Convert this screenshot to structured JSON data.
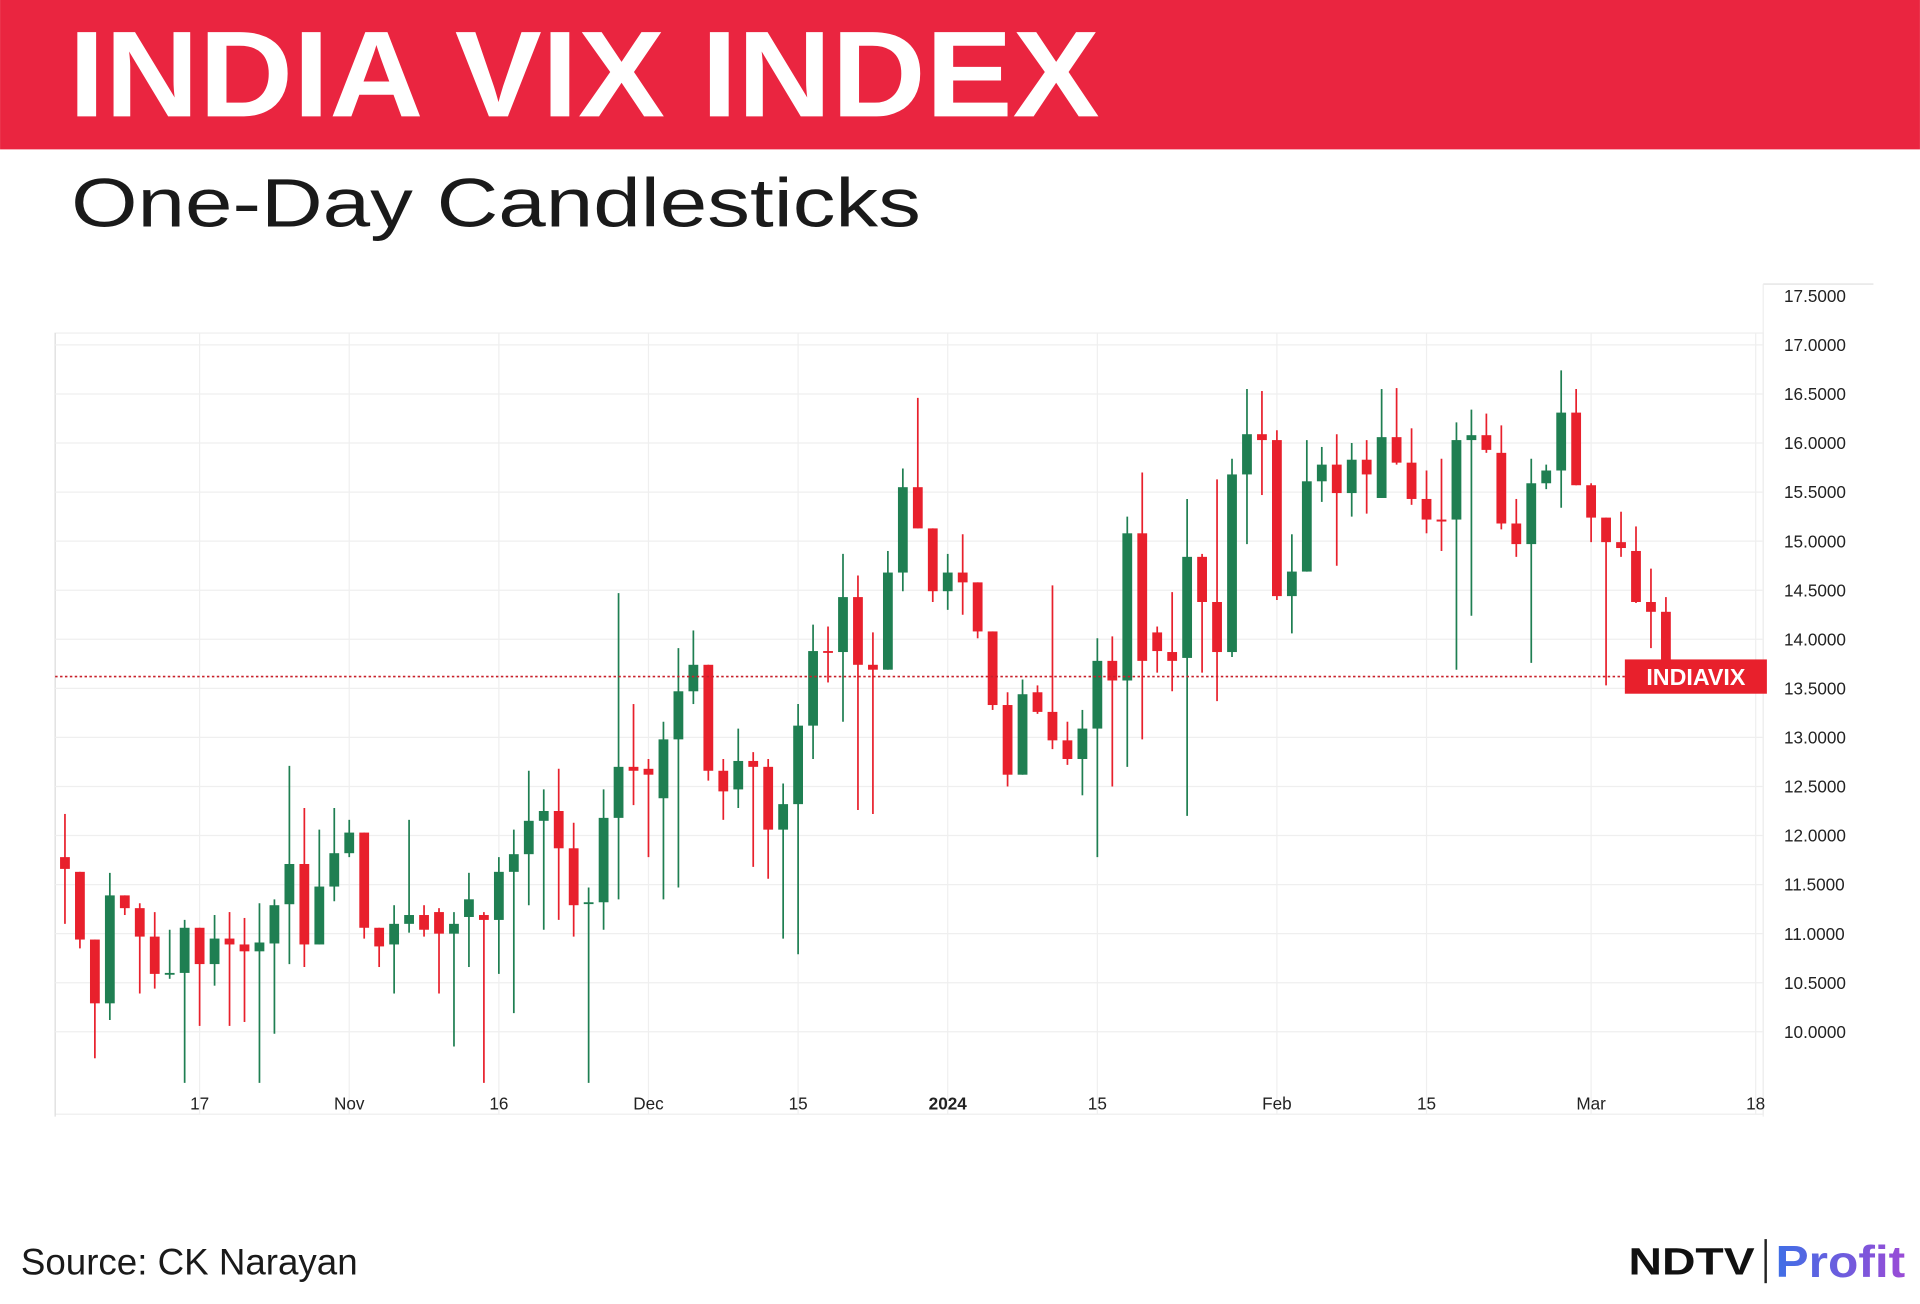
{
  "chart_data": {
    "type": "candlestick",
    "title": "INDIA VIX INDEX",
    "subtitle": "One-Day Candlesticks",
    "last_label": "INDIAVIX",
    "up_color": "#1f7f52",
    "down_color": "#e8202c",
    "last_line_color": "#c8202a",
    "grid": true,
    "ylim": [
      9.16,
      17.62
    ],
    "yticks": [
      {
        "value": 10,
        "label": "10.0000"
      },
      {
        "value": 10.5,
        "label": "10.5000"
      },
      {
        "value": 11,
        "label": "11.0000"
      },
      {
        "value": 11.5,
        "label": "11.5000"
      },
      {
        "value": 12,
        "label": "12.0000"
      },
      {
        "value": 12.5,
        "label": "12.5000"
      },
      {
        "value": 13,
        "label": "13.0000"
      },
      {
        "value": 13.5,
        "label": "13.5000"
      },
      {
        "value": 14,
        "label": "14.0000"
      },
      {
        "value": 14.5,
        "label": "14.5000"
      },
      {
        "value": 15,
        "label": "15.0000"
      },
      {
        "value": 15.5,
        "label": "15.5000"
      },
      {
        "value": 16,
        "label": "16.0000"
      },
      {
        "value": 16.5,
        "label": "16.5000"
      },
      {
        "value": 17,
        "label": "17.0000"
      },
      {
        "value": 17.5,
        "label": "17.5000"
      }
    ],
    "categories": [
      null,
      null,
      null,
      null,
      null,
      null,
      null,
      null,
      null,
      "17",
      null,
      null,
      null,
      null,
      null,
      null,
      null,
      null,
      null,
      "Nov",
      null,
      null,
      null,
      null,
      null,
      null,
      null,
      null,
      null,
      "16",
      null,
      null,
      null,
      null,
      null,
      null,
      null,
      null,
      null,
      "Dec",
      null,
      null,
      null,
      null,
      null,
      null,
      null,
      null,
      null,
      "15",
      null,
      null,
      null,
      null,
      null,
      null,
      null,
      null,
      null,
      "2024",
      null,
      null,
      null,
      null,
      null,
      null,
      null,
      null,
      null,
      "15",
      null,
      null,
      null,
      null,
      null,
      null,
      null,
      null,
      null,
      null,
      null,
      "Feb",
      null,
      null,
      null,
      null,
      null,
      null,
      null,
      null,
      null,
      "15",
      null,
      null,
      null,
      null,
      null,
      null,
      null,
      null,
      null,
      null,
      "Mar",
      null,
      null,
      null,
      null,
      null,
      null,
      null,
      null,
      null,
      null,
      "18"
    ],
    "open": [
      11.78,
      11.63,
      10.94,
      10.29,
      11.39,
      11.26,
      10.97,
      10.59,
      10.6,
      11.06,
      10.69,
      10.95,
      10.89,
      10.82,
      10.9,
      11.3,
      11.71,
      10.89,
      11.48,
      11.82,
      12.03,
      11.06,
      10.89,
      11.1,
      11.19,
      11.22,
      11.0,
      11.17,
      11.19,
      11.14,
      11.63,
      11.81,
      12.15,
      12.25,
      11.87,
      11.31,
      11.32,
      12.18,
      12.7,
      12.68,
      12.38,
      12.98,
      13.47,
      13.74,
      12.66,
      12.47,
      12.76,
      12.7,
      12.06,
      12.32,
      13.12,
      13.88,
      13.87,
      14.43,
      13.74,
      13.69,
      14.68,
      15.55,
      15.13,
      14.49,
      14.68,
      14.58,
      14.08,
      13.33,
      12.62,
      13.46,
      13.26,
      12.97,
      12.78,
      13.09,
      13.78,
      13.58,
      15.08,
      14.07,
      13.87,
      13.81,
      14.84,
      14.38,
      13.87,
      15.68,
      16.09,
      16.03,
      14.44,
      14.69,
      15.61,
      15.78,
      15.49,
      15.83,
      15.44,
      16.06,
      15.8,
      15.43,
      15.22,
      15.22,
      16.03,
      16.08,
      15.9,
      15.18,
      14.97,
      15.59,
      15.72,
      16.31,
      15.57,
      15.24,
      14.99,
      14.9,
      14.38,
      14.28,
      null,
      null,
      null,
      null,
      null,
      null
    ],
    "high": [
      12.22,
      11.63,
      10.94,
      11.62,
      11.39,
      11.31,
      11.22,
      11.04,
      11.14,
      11.06,
      11.19,
      11.22,
      11.16,
      11.31,
      11.35,
      12.71,
      12.28,
      12.06,
      12.28,
      12.16,
      12.03,
      11.06,
      11.29,
      12.16,
      11.29,
      11.26,
      11.22,
      11.62,
      11.22,
      11.78,
      12.06,
      12.66,
      12.47,
      12.68,
      12.13,
      11.47,
      12.47,
      14.47,
      13.34,
      12.78,
      13.16,
      13.91,
      14.09,
      13.74,
      12.78,
      13.09,
      12.85,
      12.78,
      12.53,
      13.34,
      14.15,
      14.13,
      14.87,
      14.65,
      14.07,
      14.9,
      15.74,
      16.46,
      15.13,
      14.87,
      15.07,
      14.58,
      14.08,
      13.46,
      13.59,
      13.53,
      14.55,
      13.16,
      13.28,
      14.01,
      14.03,
      15.25,
      15.7,
      14.13,
      14.48,
      15.43,
      14.87,
      15.63,
      15.84,
      16.55,
      16.53,
      16.13,
      15.07,
      16.03,
      15.96,
      16.09,
      16.0,
      16.03,
      16.55,
      16.56,
      16.15,
      15.72,
      15.84,
      16.21,
      16.34,
      16.3,
      16.18,
      15.43,
      15.84,
      15.78,
      16.74,
      16.55,
      15.59,
      15.24,
      15.3,
      15.15,
      14.72,
      14.43,
      null,
      null,
      null,
      null,
      null,
      null
    ],
    "low": [
      11.1,
      10.85,
      9.73,
      10.12,
      11.19,
      10.39,
      10.44,
      10.54,
      9.48,
      10.06,
      10.47,
      10.06,
      10.1,
      9.48,
      9.98,
      10.69,
      10.66,
      10.89,
      11.33,
      11.78,
      10.95,
      10.66,
      10.39,
      11.01,
      10.97,
      10.39,
      9.85,
      10.66,
      9.48,
      10.59,
      10.19,
      11.29,
      11.04,
      11.14,
      10.97,
      9.48,
      11.04,
      11.35,
      12.31,
      11.78,
      11.35,
      11.47,
      13.34,
      12.56,
      12.16,
      12.28,
      11.68,
      11.56,
      10.95,
      10.79,
      12.78,
      13.56,
      13.16,
      12.26,
      12.22,
      13.69,
      14.49,
      15.13,
      14.38,
      14.3,
      14.25,
      14.01,
      13.28,
      12.5,
      12.62,
      13.24,
      12.88,
      12.72,
      12.41,
      11.78,
      12.5,
      12.7,
      12.98,
      13.66,
      13.47,
      12.2,
      13.66,
      13.37,
      13.82,
      14.97,
      15.47,
      14.4,
      14.06,
      14.69,
      15.4,
      14.75,
      15.25,
      15.28,
      15.44,
      15.78,
      15.37,
      15.08,
      14.9,
      13.69,
      14.24,
      15.9,
      15.12,
      14.84,
      13.76,
      15.53,
      15.34,
      15.57,
      14.99,
      13.53,
      14.84,
      14.37,
      13.91,
      13.62,
      null,
      null,
      null,
      null,
      null,
      null
    ],
    "close": [
      11.66,
      10.94,
      10.29,
      11.39,
      11.26,
      10.97,
      10.59,
      10.6,
      11.06,
      10.69,
      10.95,
      10.89,
      10.82,
      10.91,
      11.29,
      11.71,
      10.89,
      11.48,
      11.82,
      12.03,
      11.06,
      10.87,
      11.1,
      11.19,
      11.04,
      11.0,
      11.1,
      11.35,
      11.14,
      11.63,
      11.81,
      12.15,
      12.25,
      11.87,
      11.29,
      11.32,
      12.18,
      12.7,
      12.66,
      12.62,
      12.98,
      13.47,
      13.74,
      12.66,
      12.45,
      12.76,
      12.7,
      12.06,
      12.32,
      13.12,
      13.88,
      13.87,
      14.43,
      13.74,
      13.69,
      14.68,
      15.55,
      15.13,
      14.49,
      14.68,
      14.58,
      14.08,
      13.33,
      12.62,
      13.44,
      13.26,
      12.97,
      12.78,
      13.09,
      13.78,
      13.58,
      15.08,
      13.78,
      13.88,
      13.78,
      14.84,
      14.38,
      13.87,
      15.68,
      16.09,
      16.03,
      14.44,
      14.69,
      15.61,
      15.78,
      15.49,
      15.83,
      15.68,
      16.06,
      15.8,
      15.43,
      15.22,
      15.2,
      16.03,
      16.08,
      15.93,
      15.18,
      14.97,
      15.59,
      15.72,
      16.31,
      15.57,
      15.24,
      14.99,
      14.93,
      14.38,
      14.28,
      13.62,
      null,
      null,
      null,
      null,
      null,
      null
    ]
  },
  "footer": {
    "source": "Source: CK Narayan",
    "brand": "NDTV",
    "brand_product": "Profit"
  }
}
